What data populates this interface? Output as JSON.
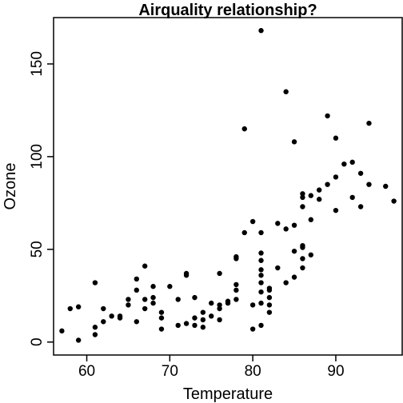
{
  "chart_data": {
    "type": "scatter",
    "title": "Airquality relationship?",
    "xlabel": "Temperature",
    "ylabel": "Ozone",
    "xlim": [
      56,
      98
    ],
    "ylim": [
      -7,
      175
    ],
    "xticks": [
      "60",
      "70",
      "80",
      "90"
    ],
    "yticks": [
      "0",
      "50",
      "100",
      "150"
    ],
    "grid": false,
    "marker_color": "#000000",
    "points": [
      [
        57,
        6
      ],
      [
        58,
        18
      ],
      [
        59,
        19
      ],
      [
        59,
        1
      ],
      [
        61,
        32
      ],
      [
        61,
        8
      ],
      [
        61,
        4
      ],
      [
        62,
        11
      ],
      [
        62,
        18
      ],
      [
        63,
        14
      ],
      [
        64,
        13
      ],
      [
        64,
        14
      ],
      [
        65,
        20
      ],
      [
        65,
        23
      ],
      [
        66,
        11
      ],
      [
        66,
        28
      ],
      [
        66,
        34
      ],
      [
        67,
        41
      ],
      [
        67,
        18
      ],
      [
        67,
        23
      ],
      [
        68,
        30
      ],
      [
        68,
        21
      ],
      [
        68,
        24
      ],
      [
        69,
        7
      ],
      [
        69,
        13
      ],
      [
        69,
        16
      ],
      [
        70,
        30
      ],
      [
        71,
        23
      ],
      [
        71,
        9
      ],
      [
        72,
        37
      ],
      [
        72,
        36
      ],
      [
        72,
        10
      ],
      [
        73,
        13
      ],
      [
        73,
        9
      ],
      [
        73,
        24
      ],
      [
        74,
        16
      ],
      [
        74,
        12
      ],
      [
        74,
        8
      ],
      [
        75,
        21
      ],
      [
        75,
        14
      ],
      [
        76,
        12
      ],
      [
        76,
        18
      ],
      [
        76,
        20
      ],
      [
        76,
        37
      ],
      [
        77,
        22
      ],
      [
        77,
        21
      ],
      [
        78,
        23
      ],
      [
        78,
        28
      ],
      [
        78,
        45
      ],
      [
        78,
        46
      ],
      [
        78,
        31
      ],
      [
        79,
        115
      ],
      [
        79,
        59
      ],
      [
        80,
        65
      ],
      [
        80,
        7
      ],
      [
        80,
        20
      ],
      [
        81,
        9
      ],
      [
        81,
        168
      ],
      [
        81,
        59
      ],
      [
        81,
        48
      ],
      [
        81,
        44
      ],
      [
        81,
        39
      ],
      [
        81,
        36
      ],
      [
        81,
        32
      ],
      [
        81,
        27
      ],
      [
        81,
        21
      ],
      [
        82,
        29
      ],
      [
        82,
        28
      ],
      [
        82,
        24
      ],
      [
        82,
        20
      ],
      [
        82,
        16
      ],
      [
        83,
        40
      ],
      [
        83,
        64
      ],
      [
        84,
        135
      ],
      [
        84,
        61
      ],
      [
        84,
        32
      ],
      [
        85,
        108
      ],
      [
        85,
        63
      ],
      [
        85,
        49
      ],
      [
        85,
        35
      ],
      [
        86,
        80
      ],
      [
        86,
        78
      ],
      [
        86,
        73
      ],
      [
        86,
        52
      ],
      [
        86,
        51
      ],
      [
        86,
        45
      ],
      [
        86,
        40
      ],
      [
        87,
        79
      ],
      [
        87,
        66
      ],
      [
        87,
        47
      ],
      [
        88,
        82
      ],
      [
        88,
        77
      ],
      [
        89,
        85
      ],
      [
        89,
        122
      ],
      [
        90,
        89
      ],
      [
        90,
        71
      ],
      [
        90,
        110
      ],
      [
        91,
        96
      ],
      [
        92,
        97
      ],
      [
        92,
        78
      ],
      [
        93,
        91
      ],
      [
        93,
        73
      ],
      [
        94,
        118
      ],
      [
        94,
        85
      ],
      [
        96,
        84
      ],
      [
        97,
        76
      ]
    ]
  }
}
